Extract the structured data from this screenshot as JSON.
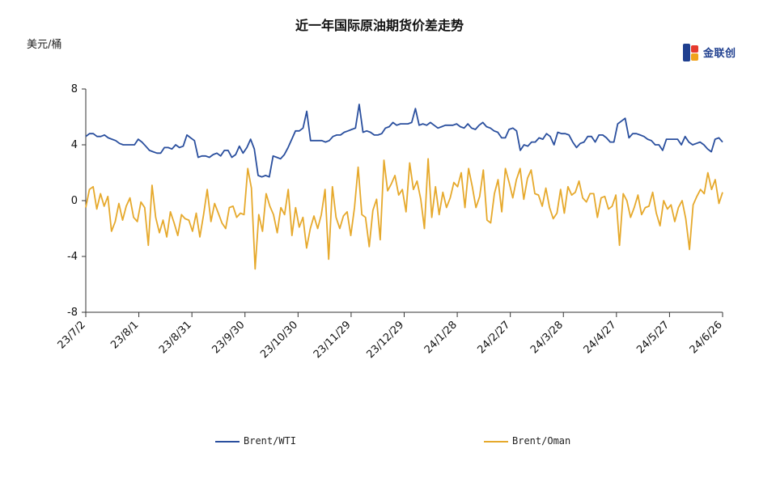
{
  "title": "近一年国际原油期货价差走势",
  "unit": "美元/桶",
  "logo": {
    "text": "金联创",
    "icon": "jlc-logo-icon"
  },
  "chart_data": {
    "type": "line",
    "ylim": [
      -8,
      8
    ],
    "yticks": [
      "8",
      "4",
      "0",
      "-4",
      "-8"
    ],
    "xtick_labels": [
      "23/7/2",
      "23/8/1",
      "23/8/31",
      "23/9/30",
      "23/10/30",
      "23/11/29",
      "23/12/29",
      "24/1/28",
      "24/2/27",
      "24/3/28",
      "24/4/27",
      "24/5/27",
      "24/6/26"
    ],
    "grid": false,
    "legend_position": "bottom",
    "series": [
      {
        "name": "Brent/WTI",
        "color": "#2a4f9e",
        "values": [
          4.6,
          4.8,
          4.8,
          4.6,
          4.6,
          4.7,
          4.5,
          4.4,
          4.3,
          4.1,
          4.0,
          4.0,
          4.0,
          4.0,
          4.4,
          4.2,
          3.9,
          3.6,
          3.5,
          3.4,
          3.4,
          3.8,
          3.8,
          3.7,
          4.0,
          3.8,
          3.9,
          4.7,
          4.5,
          4.3,
          3.1,
          3.2,
          3.2,
          3.1,
          3.3,
          3.4,
          3.2,
          3.6,
          3.6,
          3.1,
          3.3,
          3.9,
          3.4,
          3.8,
          4.4,
          3.7,
          1.8,
          1.7,
          1.8,
          1.7,
          3.2,
          3.1,
          3.0,
          3.3,
          3.8,
          4.4,
          5.0,
          5.0,
          5.2,
          6.4,
          4.3,
          4.3,
          4.3,
          4.3,
          4.2,
          4.3,
          4.6,
          4.7,
          4.7,
          4.9,
          5.0,
          5.1,
          5.2,
          6.9,
          4.9,
          5.0,
          4.9,
          4.7,
          4.7,
          4.8,
          5.2,
          5.3,
          5.6,
          5.4,
          5.5,
          5.5,
          5.5,
          5.6,
          6.6,
          5.4,
          5.5,
          5.4,
          5.6,
          5.4,
          5.2,
          5.3,
          5.4,
          5.4,
          5.4,
          5.5,
          5.3,
          5.2,
          5.5,
          5.2,
          5.1,
          5.4,
          5.6,
          5.3,
          5.2,
          5.0,
          4.9,
          4.5,
          4.5,
          5.1,
          5.2,
          5.0,
          3.6,
          4.0,
          3.9,
          4.2,
          4.2,
          4.5,
          4.4,
          4.8,
          4.6,
          4.0,
          4.9,
          4.8,
          4.8,
          4.7,
          4.2,
          3.8,
          4.1,
          4.2,
          4.6,
          4.6,
          4.2,
          4.7,
          4.7,
          4.5,
          4.2,
          4.2,
          5.5,
          5.7,
          5.9,
          4.5,
          4.8,
          4.8,
          4.7,
          4.6,
          4.4,
          4.3,
          4.0,
          4.0,
          3.6,
          4.4,
          4.4,
          4.4,
          4.4,
          4.0,
          4.6,
          4.2,
          4.0,
          4.1,
          4.2,
          4.0,
          3.7,
          3.5,
          4.4,
          4.5,
          4.2
        ]
      },
      {
        "name": "Brent/Oman",
        "color": "#e6a92c",
        "values": [
          -0.5,
          0.8,
          1.0,
          -0.6,
          0.5,
          -0.4,
          0.3,
          -2.2,
          -1.5,
          -0.2,
          -1.4,
          -0.4,
          0.2,
          -1.2,
          -1.5,
          -0.1,
          -0.5,
          -3.2,
          1.1,
          -1.2,
          -2.3,
          -1.4,
          -2.6,
          -0.8,
          -1.6,
          -2.5,
          -1.0,
          -1.3,
          -1.4,
          -2.2,
          -0.9,
          -2.6,
          -1.0,
          0.8,
          -1.5,
          -0.2,
          -0.9,
          -1.6,
          -2.0,
          -0.5,
          -0.4,
          -1.2,
          -0.9,
          -1.0,
          2.3,
          0.9,
          -4.9,
          -1.0,
          -2.2,
          0.5,
          -0.4,
          -1.0,
          -2.3,
          -0.5,
          -1.0,
          0.8,
          -2.5,
          -0.5,
          -1.9,
          -1.2,
          -3.4,
          -2.0,
          -1.1,
          -2.0,
          -1.0,
          0.8,
          -4.2,
          1.0,
          -1.2,
          -2.0,
          -1.1,
          -0.8,
          -2.5,
          -0.5,
          2.4,
          -1.0,
          -1.2,
          -3.3,
          -0.7,
          0.1,
          -2.8,
          2.9,
          0.7,
          1.2,
          1.8,
          0.4,
          0.8,
          -0.8,
          2.7,
          0.8,
          1.4,
          0.1,
          -2.0,
          3.0,
          -1.2,
          1.0,
          -1.0,
          0.6,
          -0.5,
          0.2,
          1.3,
          1.0,
          2.0,
          -0.5,
          2.3,
          1.0,
          -0.5,
          0.3,
          2.2,
          -1.4,
          -1.6,
          0.5,
          1.5,
          -0.8,
          2.3,
          1.3,
          0.2,
          1.5,
          2.3,
          0.1,
          1.6,
          2.2,
          0.5,
          0.4,
          -0.4,
          0.9,
          -0.5,
          -1.3,
          -0.9,
          0.8,
          -0.9,
          1.0,
          0.4,
          0.6,
          1.4,
          0.2,
          -0.1,
          0.5,
          0.5,
          -1.2,
          0.2,
          0.3,
          -0.6,
          -0.4,
          0.4,
          -3.2,
          0.5,
          0.0,
          -1.2,
          -0.5,
          0.4,
          -1.0,
          -0.5,
          -0.4,
          0.6,
          -0.9,
          -1.8,
          0.0,
          -0.6,
          -0.3,
          -1.5,
          -0.5,
          0.0,
          -1.3,
          -3.5,
          -0.3,
          0.3,
          0.8,
          0.5,
          2.0,
          0.8,
          1.5,
          -0.2,
          0.6
        ]
      }
    ]
  }
}
